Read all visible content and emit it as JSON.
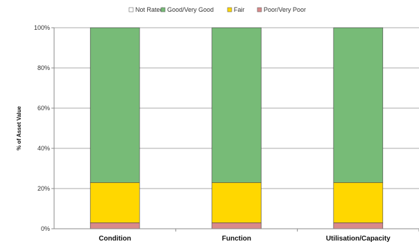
{
  "chart_data": {
    "type": "bar",
    "stacked": true,
    "title": "",
    "xlabel": "",
    "ylabel": "% of Asset Value",
    "ylim": [
      0,
      100
    ],
    "y_ticks": [
      "0%",
      "20%",
      "40%",
      "60%",
      "80%",
      "100%"
    ],
    "categories": [
      "Condition",
      "Function",
      "Utilisation/Capacity"
    ],
    "series": [
      {
        "name": "Poor/Very Poor",
        "color": "#d98a8a",
        "values": [
          3,
          3,
          3
        ]
      },
      {
        "name": "Fair",
        "color": "#ffd700",
        "values": [
          20,
          20,
          20
        ]
      },
      {
        "name": "Good/Very Good",
        "color": "#77bb77",
        "values": [
          77,
          77,
          77
        ]
      },
      {
        "name": "Not Rated",
        "color": "#ffffff",
        "values": [
          0,
          0,
          0
        ]
      }
    ],
    "legend_order": [
      "Not Rated",
      "Good/Very Good",
      "Fair",
      "Poor/Very Poor"
    ],
    "legend_position": "top",
    "grid": true
  }
}
